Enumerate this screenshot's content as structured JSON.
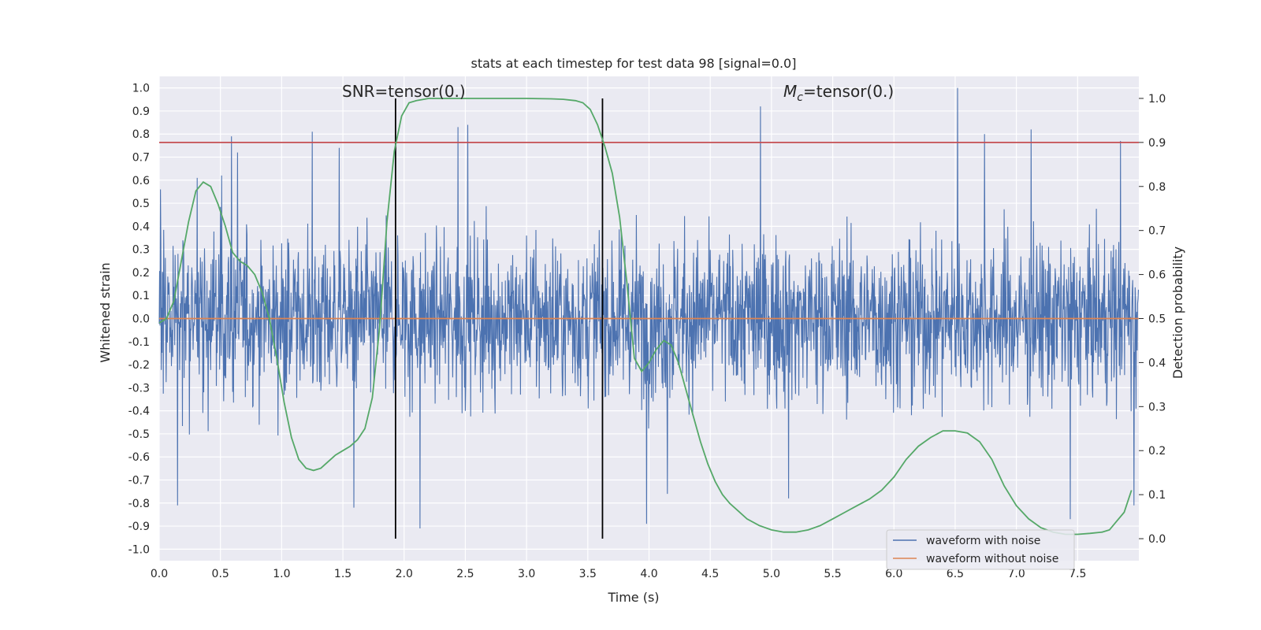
{
  "chart_data": {
    "type": "line",
    "title": "stats at each timestep for test data 98 [signal=0.0]",
    "xlabel": "Time (s)",
    "ylabel": "Whitened strain",
    "y2label": "Detection probability",
    "xlim": [
      0.0,
      8.0
    ],
    "ylim": [
      -1.05,
      1.05
    ],
    "y2lim": [
      -0.05,
      1.05
    ],
    "xticks": [
      "0.0",
      "0.5",
      "1.0",
      "1.5",
      "2.0",
      "2.5",
      "3.0",
      "3.5",
      "4.0",
      "4.5",
      "5.0",
      "5.5",
      "6.0",
      "6.5",
      "7.0",
      "7.5"
    ],
    "yticks": [
      "-1.0",
      "-0.9",
      "-0.8",
      "-0.7",
      "-0.6",
      "-0.5",
      "-0.4",
      "-0.3",
      "-0.2",
      "-0.1",
      "0.0",
      "0.1",
      "0.2",
      "0.3",
      "0.4",
      "0.5",
      "0.6",
      "0.7",
      "0.8",
      "0.9",
      "1.0"
    ],
    "y2ticks": [
      "0.0",
      "0.1",
      "0.2",
      "0.3",
      "0.4",
      "0.5",
      "0.6",
      "0.7",
      "0.8",
      "0.9",
      "1.0"
    ],
    "grid": true,
    "legend_position": "bottom-right",
    "annotations": [
      {
        "text": "SNR=tensor(0.)",
        "x": 1.5,
        "y": 1.0
      },
      {
        "text_symbol": "M",
        "text_subscript": "c",
        "text_rest": "=tensor(0.)",
        "x": 5.1,
        "y": 1.0
      }
    ],
    "vertical_lines": [
      1.93,
      3.62
    ],
    "threshold_line": {
      "axis": "right",
      "y": 0.9,
      "color": "#c44e52"
    },
    "series": [
      {
        "name": "waveform with noise",
        "axis": "left",
        "color": "#4c72b0",
        "noise_envelope": {
          "typical_max": 0.45,
          "typical_min": -0.45
        },
        "peaks": [
          {
            "x": 0.01,
            "y": 0.56
          },
          {
            "x": 0.15,
            "y": -0.81
          },
          {
            "x": 0.31,
            "y": 0.61
          },
          {
            "x": 0.51,
            "y": 0.62
          },
          {
            "x": 0.59,
            "y": 0.79
          },
          {
            "x": 0.64,
            "y": 0.72
          },
          {
            "x": 1.25,
            "y": 0.81
          },
          {
            "x": 1.47,
            "y": 0.74
          },
          {
            "x": 1.59,
            "y": -0.82
          },
          {
            "x": 2.13,
            "y": -0.91
          },
          {
            "x": 2.44,
            "y": 0.83
          },
          {
            "x": 2.52,
            "y": 0.84
          },
          {
            "x": 3.98,
            "y": -0.89
          },
          {
            "x": 4.15,
            "y": -0.76
          },
          {
            "x": 4.91,
            "y": 0.92
          },
          {
            "x": 5.14,
            "y": -0.78
          },
          {
            "x": 6.52,
            "y": 1.0
          },
          {
            "x": 6.74,
            "y": 0.8
          },
          {
            "x": 7.12,
            "y": 0.82
          },
          {
            "x": 7.44,
            "y": -0.87
          },
          {
            "x": 7.85,
            "y": 0.77
          },
          {
            "x": 7.96,
            "y": -0.81
          }
        ]
      },
      {
        "name": "waveform without noise",
        "axis": "left",
        "color": "#dd8452",
        "x": [
          0.0,
          8.0
        ],
        "values": [
          0.0,
          0.0
        ]
      },
      {
        "name": "",
        "axis": "right",
        "color": "#55a868",
        "x": [
          0.0,
          0.06,
          0.12,
          0.18,
          0.24,
          0.3,
          0.36,
          0.42,
          0.48,
          0.54,
          0.6,
          0.66,
          0.72,
          0.78,
          0.84,
          0.9,
          0.96,
          1.02,
          1.08,
          1.14,
          1.2,
          1.26,
          1.32,
          1.38,
          1.44,
          1.5,
          1.56,
          1.62,
          1.68,
          1.74,
          1.8,
          1.86,
          1.92,
          1.98,
          2.04,
          2.1,
          2.2,
          2.4,
          2.6,
          2.8,
          3.0,
          3.2,
          3.3,
          3.4,
          3.46,
          3.52,
          3.58,
          3.64,
          3.7,
          3.76,
          3.82,
          3.88,
          3.94,
          4.0,
          4.06,
          4.12,
          4.18,
          4.24,
          4.3,
          4.36,
          4.42,
          4.48,
          4.54,
          4.6,
          4.66,
          4.72,
          4.8,
          4.9,
          5.0,
          5.1,
          5.2,
          5.3,
          5.4,
          5.5,
          5.6,
          5.7,
          5.8,
          5.9,
          6.0,
          6.1,
          6.2,
          6.3,
          6.4,
          6.5,
          6.6,
          6.7,
          6.8,
          6.9,
          7.0,
          7.1,
          7.2,
          7.3,
          7.4,
          7.5,
          7.6,
          7.7,
          7.76,
          7.82,
          7.88,
          7.94
        ],
        "values": [
          0.49,
          0.5,
          0.54,
          0.63,
          0.72,
          0.79,
          0.81,
          0.8,
          0.76,
          0.71,
          0.65,
          0.63,
          0.62,
          0.6,
          0.56,
          0.5,
          0.41,
          0.31,
          0.23,
          0.18,
          0.16,
          0.155,
          0.16,
          0.175,
          0.19,
          0.2,
          0.21,
          0.225,
          0.25,
          0.32,
          0.48,
          0.72,
          0.88,
          0.96,
          0.99,
          0.995,
          1.0,
          1.0,
          1.0,
          1.0,
          1.0,
          0.999,
          0.998,
          0.995,
          0.99,
          0.975,
          0.94,
          0.89,
          0.83,
          0.73,
          0.58,
          0.41,
          0.38,
          0.4,
          0.43,
          0.45,
          0.44,
          0.4,
          0.34,
          0.28,
          0.22,
          0.17,
          0.13,
          0.1,
          0.08,
          0.065,
          0.045,
          0.03,
          0.02,
          0.015,
          0.015,
          0.02,
          0.03,
          0.045,
          0.06,
          0.075,
          0.09,
          0.11,
          0.14,
          0.18,
          0.21,
          0.23,
          0.245,
          0.245,
          0.24,
          0.22,
          0.18,
          0.12,
          0.075,
          0.045,
          0.025,
          0.015,
          0.01,
          0.01,
          0.012,
          0.015,
          0.02,
          0.04,
          0.06,
          0.11
        ]
      }
    ]
  }
}
